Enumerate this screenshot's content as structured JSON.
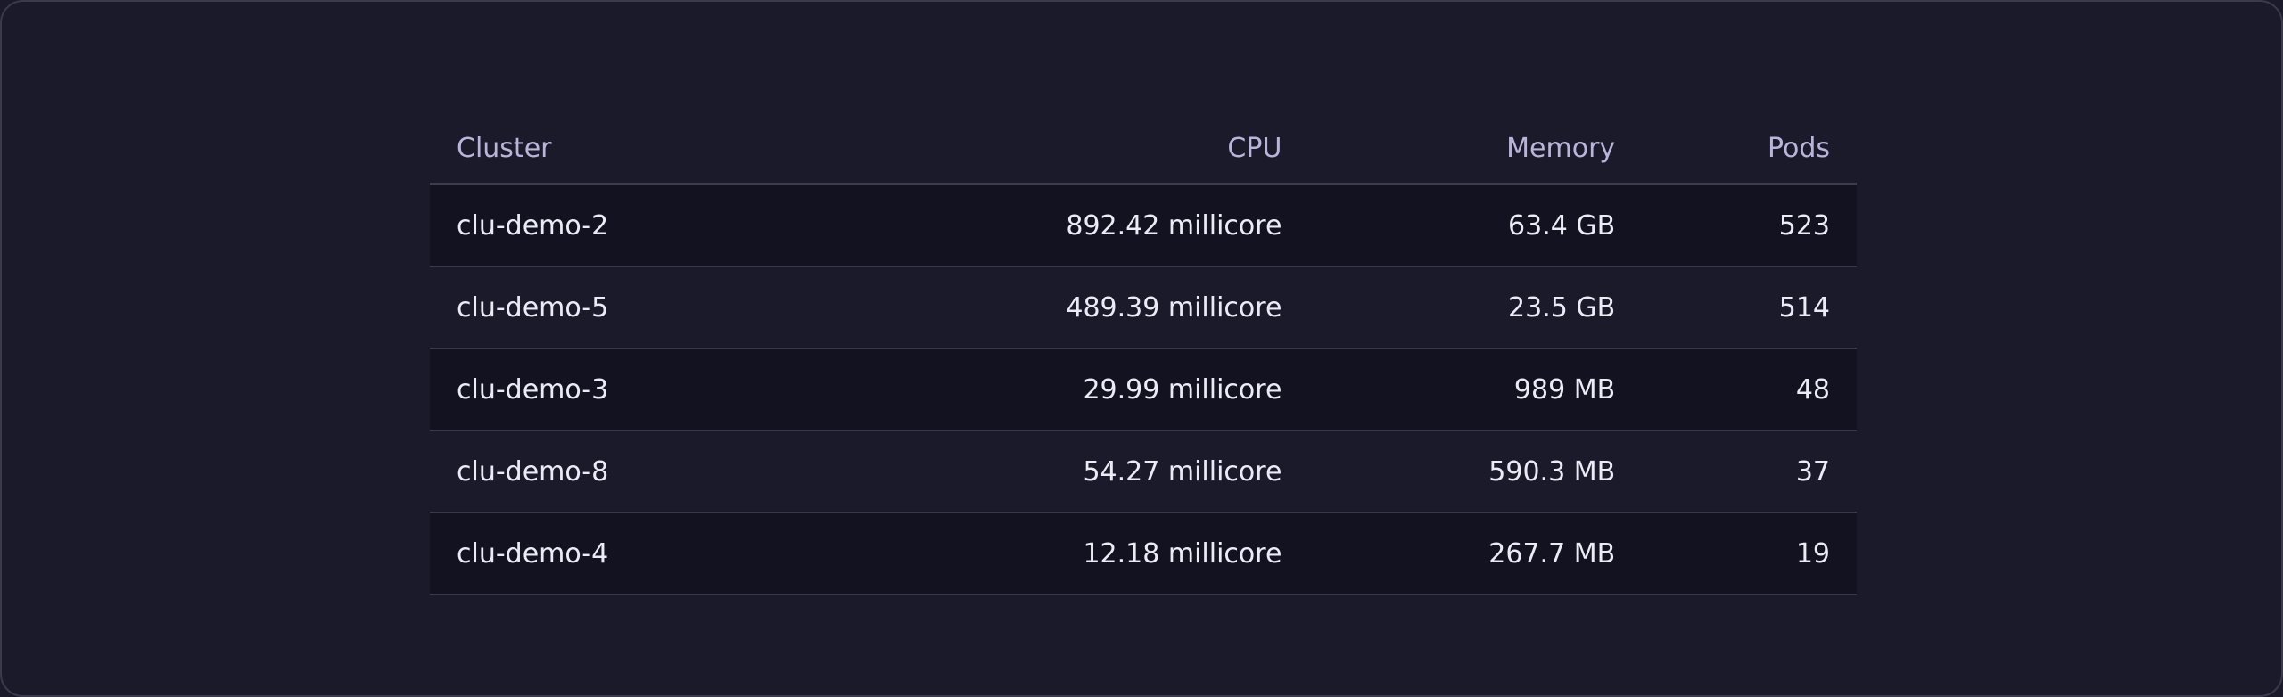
{
  "table": {
    "columns": [
      "Cluster",
      "CPU",
      "Memory",
      "Pods"
    ],
    "rows": [
      [
        "clu-demo-2",
        "892.42 millicore",
        "63.4 GB",
        "523"
      ],
      [
        "clu-demo-5",
        "489.39 millicore",
        "23.5 GB",
        "514"
      ],
      [
        "clu-demo-3",
        "29.99 millicore",
        "989 MB",
        "48"
      ],
      [
        "clu-demo-8",
        "54.27 millicore",
        "590.3 MB",
        "37"
      ],
      [
        "clu-demo-4",
        "12.18 millicore",
        "267.7 MB",
        "19"
      ]
    ]
  }
}
